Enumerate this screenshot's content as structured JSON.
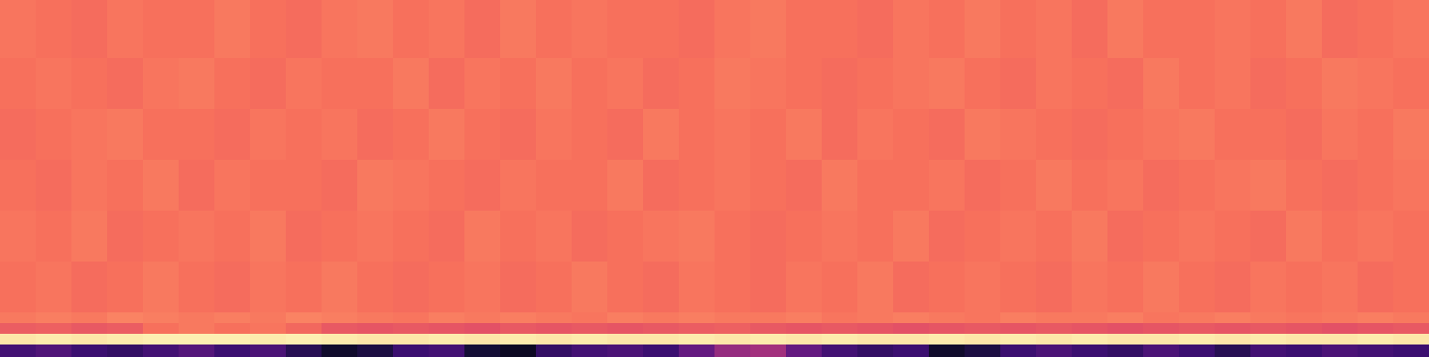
{
  "chart_data": {
    "type": "heatmap",
    "tick_labels": false,
    "grid": false,
    "zlim": [
      0,
      1
    ],
    "y": [
      0,
      14,
      26,
      38,
      50,
      107,
      164,
      221,
      278,
      335,
      400
    ],
    "cells": [
      [
        0.22,
        0.25,
        0.2,
        0.18,
        0.22,
        0.26,
        0.2,
        0.24,
        0.15,
        0.08,
        0.12,
        0.2,
        0.22,
        0.1,
        0.06,
        0.18,
        0.22,
        0.24,
        0.2,
        0.3,
        0.42,
        0.45,
        0.3,
        0.22,
        0.18,
        0.2,
        0.08,
        0.12,
        0.2,
        0.24,
        0.2,
        0.18,
        0.24,
        0.2,
        0.15,
        0.22,
        0.2,
        0.24,
        0.22,
        0.2
      ],
      [
        0.95,
        0.96,
        0.95,
        0.96,
        0.97,
        0.97,
        0.97,
        0.96,
        0.97,
        0.96,
        0.95,
        0.95,
        0.96,
        0.95,
        0.96,
        0.95,
        0.96,
        0.95,
        0.95,
        0.96,
        0.95,
        0.96,
        0.95,
        0.96,
        0.95,
        0.95,
        0.96,
        0.95,
        0.96,
        0.95,
        0.96,
        0.95,
        0.95,
        0.96,
        0.95,
        0.96,
        0.95,
        0.95,
        0.96,
        0.95
      ],
      [
        0.65,
        0.66,
        0.64,
        0.65,
        0.7,
        0.72,
        0.7,
        0.71,
        0.68,
        0.64,
        0.63,
        0.64,
        0.63,
        0.62,
        0.64,
        0.63,
        0.64,
        0.63,
        0.64,
        0.65,
        0.66,
        0.64,
        0.63,
        0.64,
        0.63,
        0.62,
        0.63,
        0.64,
        0.63,
        0.64,
        0.63,
        0.62,
        0.63,
        0.64,
        0.63,
        0.64,
        0.63,
        0.62,
        0.63,
        0.64
      ],
      [
        0.72,
        0.73,
        0.72,
        0.74,
        0.73,
        0.72,
        0.73,
        0.72,
        0.74,
        0.73,
        0.72,
        0.71,
        0.73,
        0.72,
        0.73,
        0.72,
        0.71,
        0.73,
        0.72,
        0.73,
        0.72,
        0.72,
        0.73,
        0.71,
        0.72,
        0.73,
        0.72,
        0.71,
        0.73,
        0.72,
        0.72,
        0.73,
        0.71,
        0.72,
        0.73,
        0.72,
        0.71,
        0.72,
        0.73,
        0.72
      ],
      [
        0.7,
        0.71,
        0.69,
        0.7,
        0.72,
        0.7,
        0.69,
        0.71,
        0.7,
        0.72,
        0.7,
        0.69,
        0.7,
        0.71,
        0.69,
        0.7,
        0.72,
        0.7,
        0.69,
        0.71,
        0.7,
        0.69,
        0.71,
        0.7,
        0.72,
        0.69,
        0.7,
        0.71,
        0.7,
        0.69,
        0.71,
        0.7,
        0.72,
        0.7,
        0.69,
        0.71,
        0.7,
        0.71,
        0.69,
        0.7
      ],
      [
        0.71,
        0.7,
        0.72,
        0.69,
        0.7,
        0.71,
        0.7,
        0.72,
        0.69,
        0.7,
        0.71,
        0.7,
        0.69,
        0.72,
        0.7,
        0.71,
        0.69,
        0.7,
        0.71,
        0.72,
        0.7,
        0.69,
        0.7,
        0.71,
        0.7,
        0.72,
        0.69,
        0.7,
        0.71,
        0.7,
        0.72,
        0.69,
        0.7,
        0.71,
        0.7,
        0.69,
        0.72,
        0.7,
        0.71,
        0.7
      ],
      [
        0.7,
        0.69,
        0.71,
        0.7,
        0.72,
        0.69,
        0.71,
        0.7,
        0.7,
        0.69,
        0.72,
        0.71,
        0.7,
        0.69,
        0.71,
        0.7,
        0.7,
        0.72,
        0.69,
        0.7,
        0.71,
        0.7,
        0.69,
        0.72,
        0.7,
        0.7,
        0.71,
        0.69,
        0.7,
        0.72,
        0.7,
        0.71,
        0.69,
        0.7,
        0.71,
        0.72,
        0.7,
        0.69,
        0.7,
        0.71
      ],
      [
        0.69,
        0.7,
        0.71,
        0.72,
        0.7,
        0.7,
        0.69,
        0.71,
        0.7,
        0.71,
        0.69,
        0.7,
        0.72,
        0.7,
        0.69,
        0.71,
        0.7,
        0.69,
        0.72,
        0.7,
        0.71,
        0.7,
        0.72,
        0.69,
        0.71,
        0.7,
        0.69,
        0.72,
        0.71,
        0.7,
        0.69,
        0.7,
        0.71,
        0.72,
        0.7,
        0.7,
        0.69,
        0.71,
        0.7,
        0.72
      ],
      [
        0.7,
        0.71,
        0.7,
        0.69,
        0.71,
        0.72,
        0.7,
        0.69,
        0.71,
        0.7,
        0.7,
        0.72,
        0.69,
        0.71,
        0.7,
        0.72,
        0.7,
        0.71,
        0.69,
        0.7,
        0.72,
        0.71,
        0.7,
        0.69,
        0.7,
        0.71,
        0.72,
        0.7,
        0.69,
        0.71,
        0.7,
        0.69,
        0.72,
        0.7,
        0.71,
        0.69,
        0.7,
        0.72,
        0.71,
        0.7
      ],
      [
        0.71,
        0.7,
        0.69,
        0.71,
        0.7,
        0.7,
        0.72,
        0.7,
        0.69,
        0.71,
        0.72,
        0.7,
        0.71,
        0.69,
        0.72,
        0.7,
        0.71,
        0.7,
        0.7,
        0.69,
        0.71,
        0.72,
        0.7,
        0.7,
        0.69,
        0.71,
        0.7,
        0.72,
        0.7,
        0.71,
        0.69,
        0.72,
        0.7,
        0.7,
        0.71,
        0.7,
        0.72,
        0.69,
        0.7,
        0.71
      ]
    ]
  }
}
